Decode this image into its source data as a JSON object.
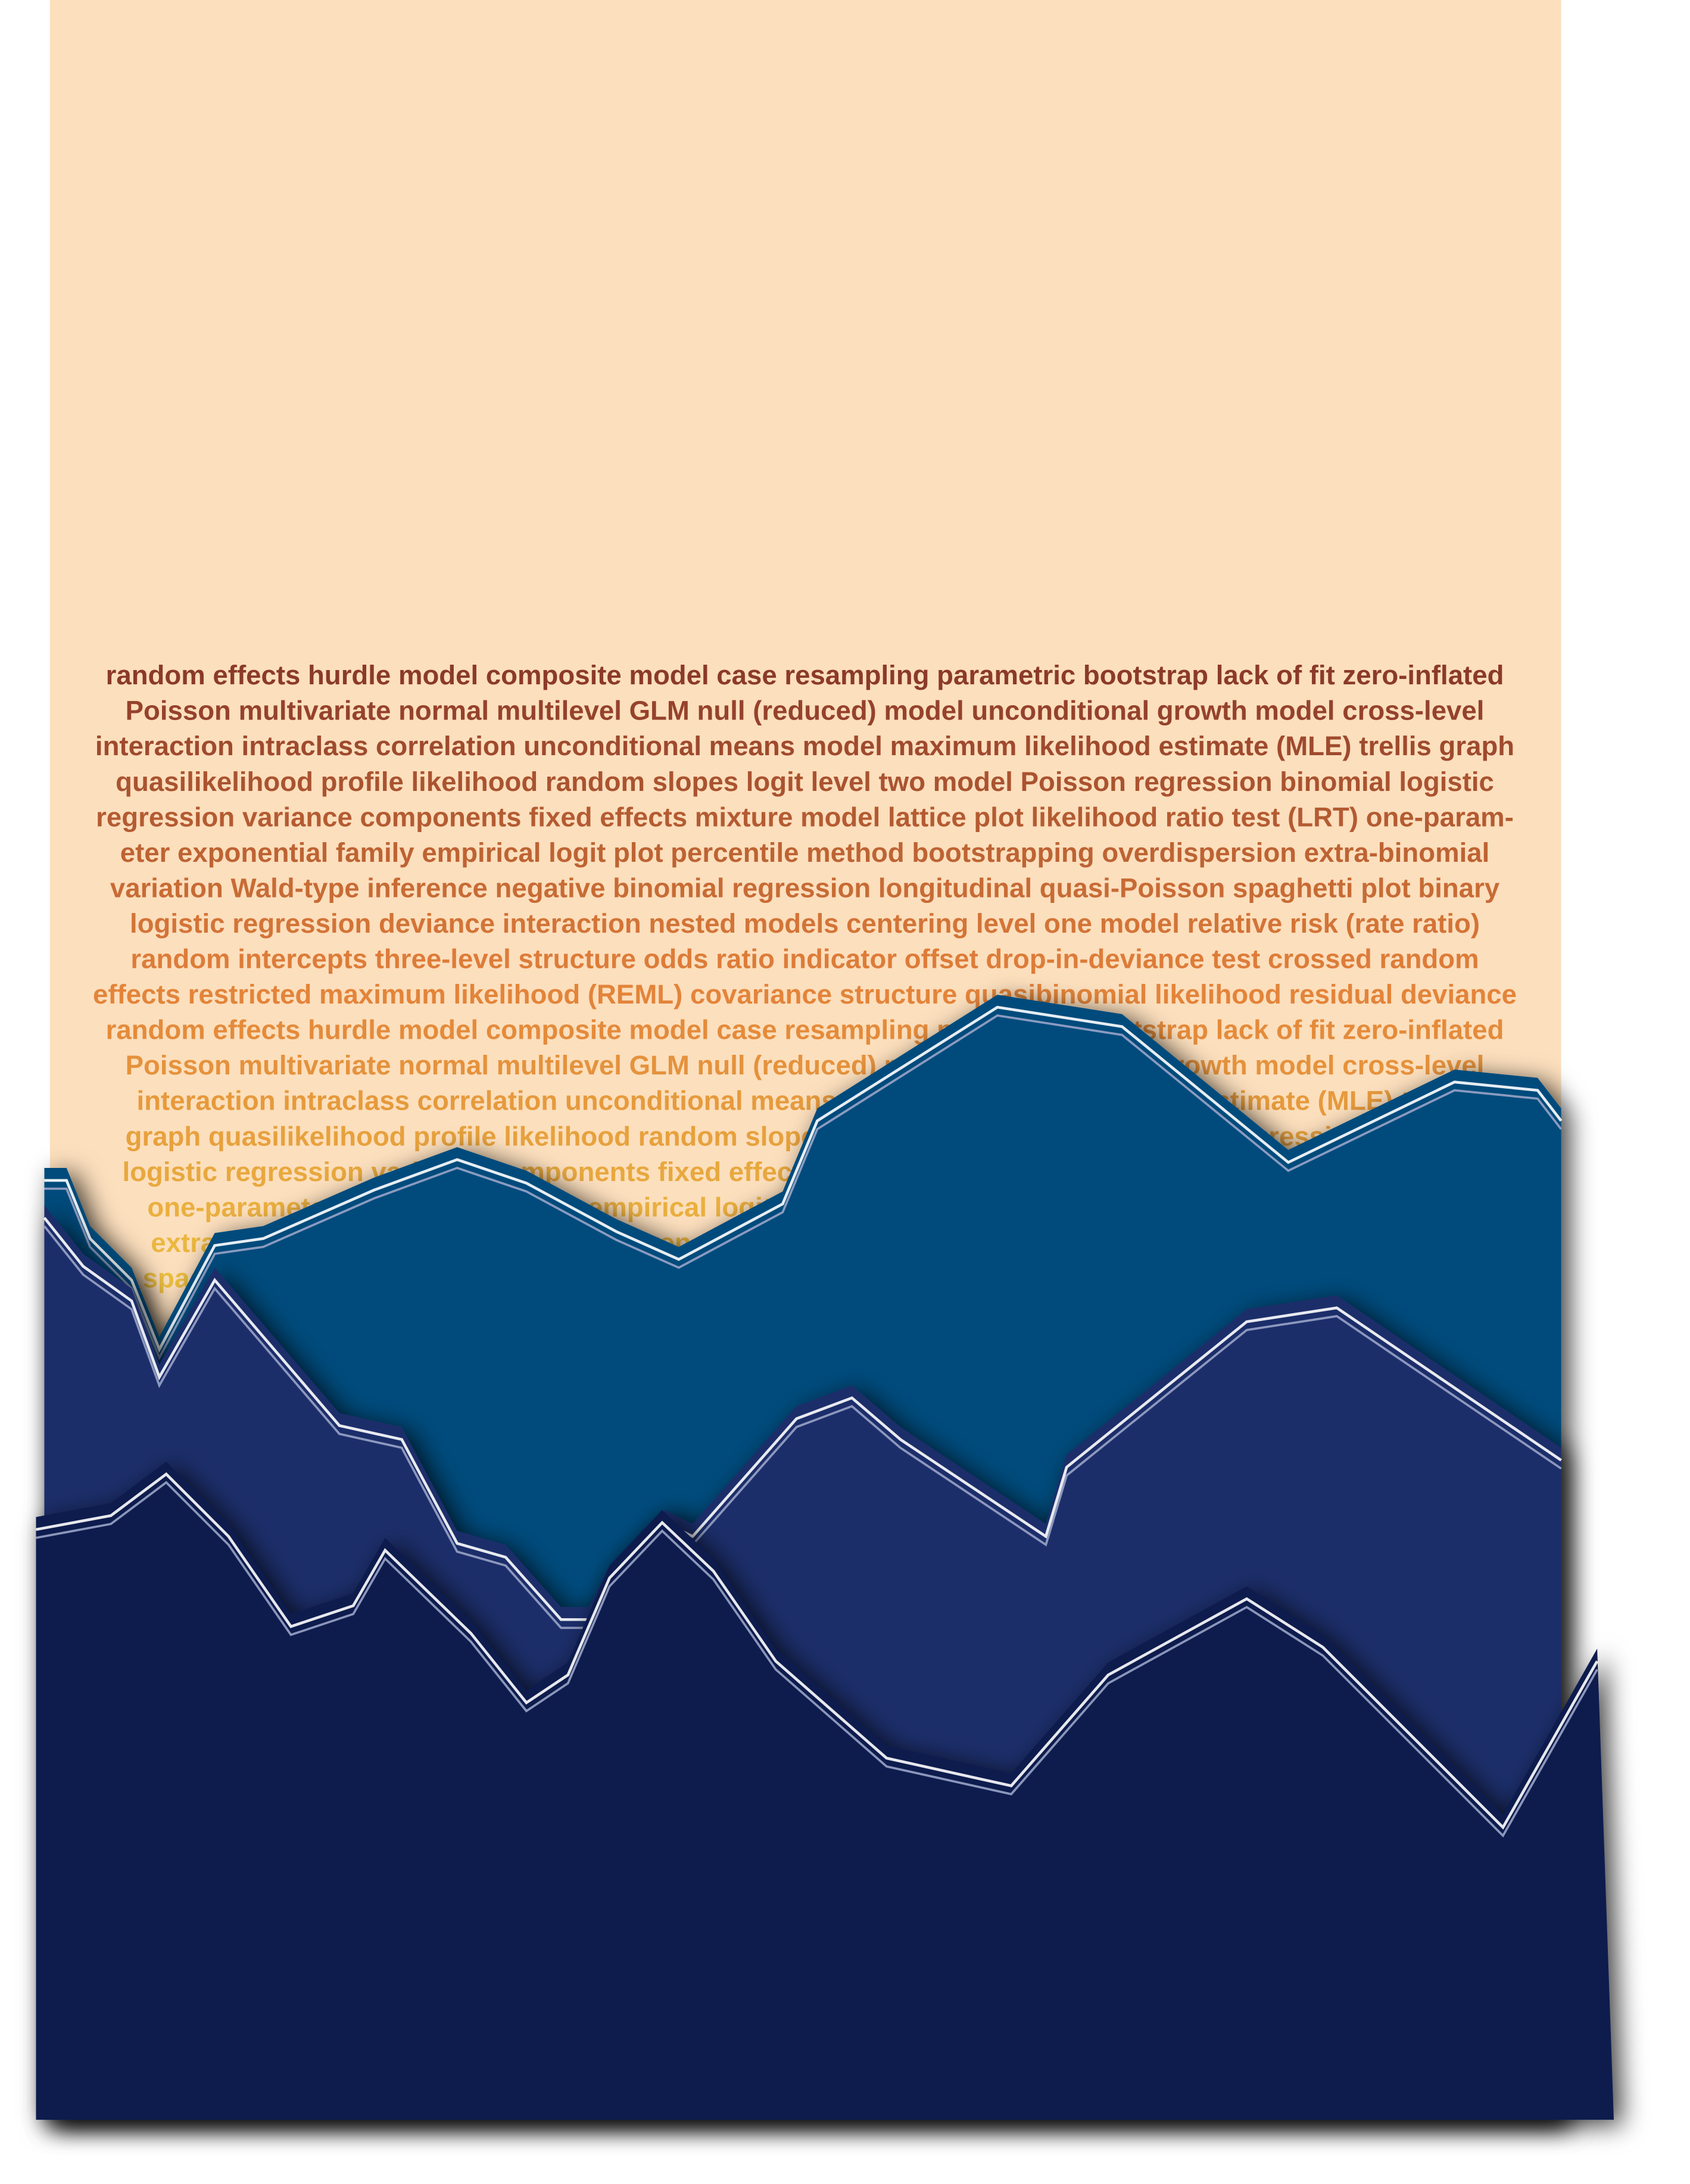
{
  "text_lines": [
    "random effects hurdle model composite model case resampling parametric bootstrap lack of fit zero-inflated",
    "Poisson multivariate normal multilevel GLM null (reduced) model unconditional growth model cross-level",
    "interaction intraclass correlation unconditional means model maximum likelihood estimate (MLE) trellis graph",
    "quasilikelihood profile likelihood random slopes logit level two model Poisson regression binomial logistic",
    "regression variance components fixed effects mixture model lattice plot likelihood ratio test (LRT) one-param-",
    "eter exponential family empirical logit plot percentile method bootstrapping overdispersion extra-binomial",
    "variation Wald-type inference negative binomial regression longitudinal quasi-Poisson spaghetti plot binary",
    "logistic regression deviance interaction nested models centering level one model relative risk (rate ratio)",
    "random intercepts three-level structure odds ratio indicator offset drop-in-deviance test crossed random",
    "effects restricted maximum likelihood (REML) covariance structure quasibinomial likelihood residual deviance",
    "random effects hurdle model composite model case resampling parametric bootstrap lack of fit zero-inflated",
    "Poisson multivariate normal multilevel GLM null (reduced) model unconditional growth model cross-level",
    "interaction intraclass correlation unconditional means model maximum likelihood estimate (MLE) trellis",
    "graph quasilikelihood profile likelihood random slopes logit level two model Poisson regression binomial",
    "logistic regression variance components fixed effects mixture model lattice plot likelihood ratio test (LRT)",
    "one-parameter exponential family empirical logit plot percentile method bootstrapping overdispersion",
    "extra-binomial variation Wald-type inference negative binomial regression longitudinal quasi-Poisson",
    "spaghetti plot binary logistic regression deviance interaction nested models centering level one model"
  ]
}
